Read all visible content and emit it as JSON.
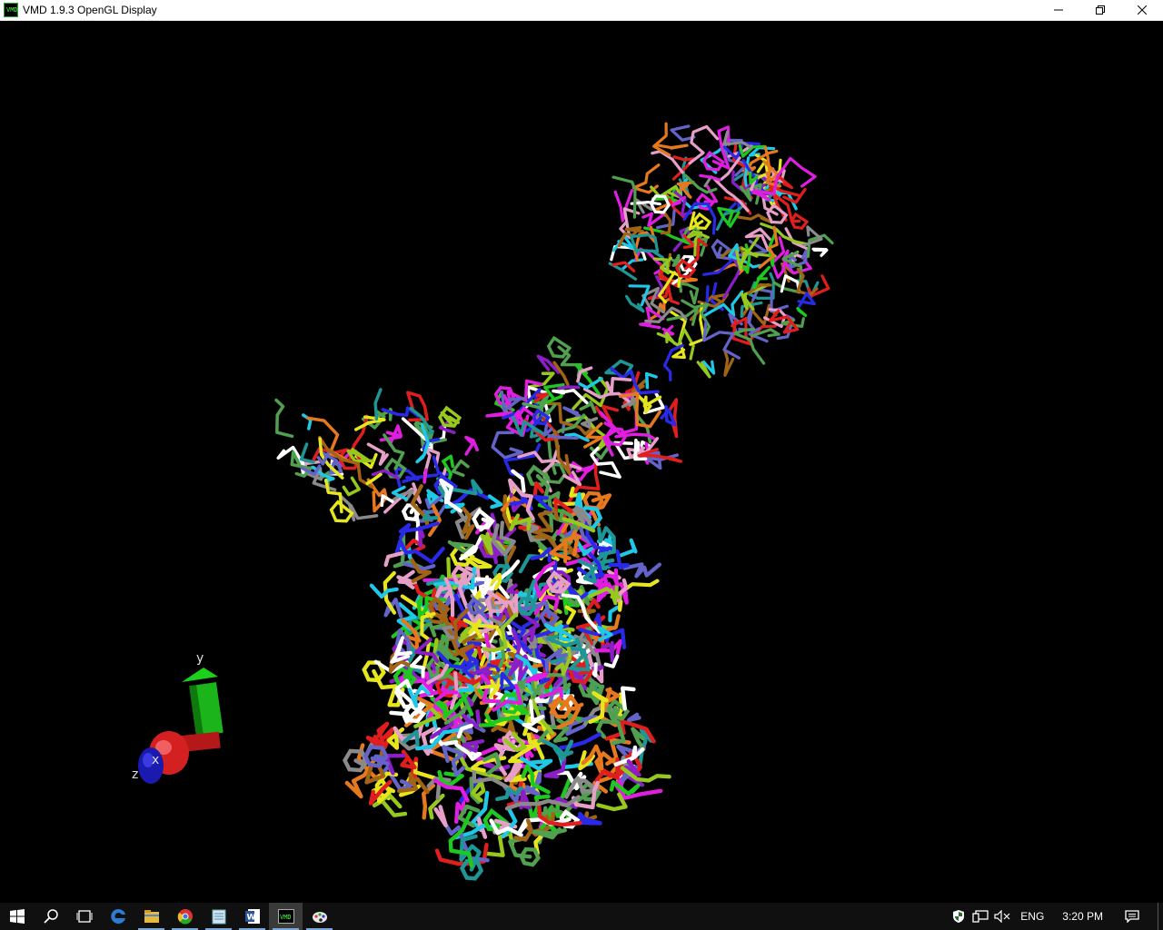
{
  "window": {
    "title": "VMD 1.9.3 OpenGL Display",
    "icon_name": "vmd-icon",
    "controls": [
      "minimize-icon",
      "restore-icon",
      "close-icon"
    ]
  },
  "viewport": {
    "background": "#000000",
    "axes": {
      "x_label": "x",
      "y_label": "y",
      "z_label": "z",
      "x_color": "#cc1a1a",
      "y_color": "#1bb51b",
      "z_color": "#1a1ab0"
    },
    "residue_colors": [
      "#e01e1e",
      "#1ec81e",
      "#2a2ae6",
      "#e6e61e",
      "#e01ee0",
      "#1ec8e6",
      "#e6781e",
      "#8a8a8a",
      "#e6a0c8",
      "#8c1ec8",
      "#1e9696",
      "#96c81e",
      "#a06414",
      "#ffffff",
      "#6464c8",
      "#50a050"
    ]
  },
  "taskbar": {
    "items": [
      {
        "name": "start-button-icon"
      },
      {
        "name": "search-icon"
      },
      {
        "name": "task-view-icon"
      },
      {
        "name": "edge-icon"
      },
      {
        "name": "file-explorer-icon"
      },
      {
        "name": "chrome-icon"
      },
      {
        "name": "notepad-icon"
      },
      {
        "name": "word-icon"
      },
      {
        "name": "vmd-taskbar-icon"
      },
      {
        "name": "paint-icon"
      }
    ],
    "tray": {
      "language": "ENG",
      "time": "3:20 PM"
    }
  }
}
